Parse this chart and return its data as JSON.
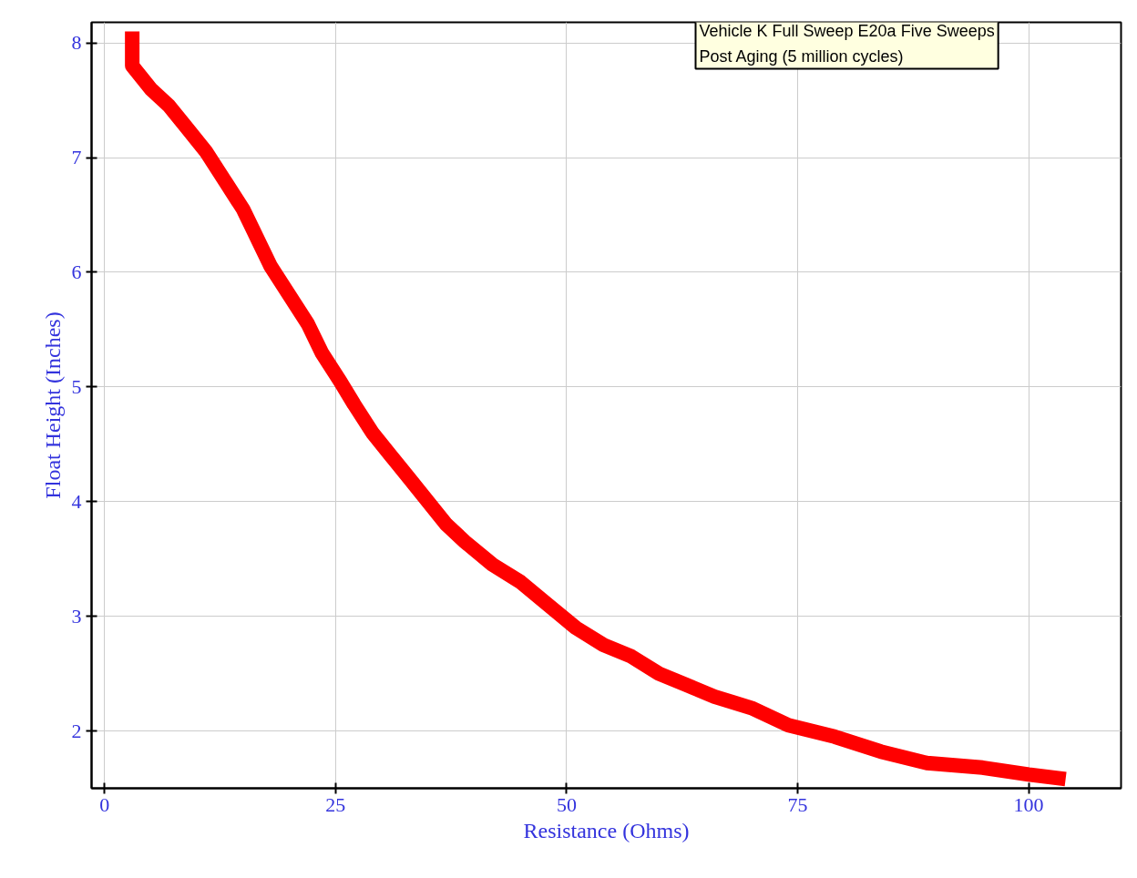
{
  "chart_data": {
    "type": "line",
    "xlabel": "Resistance (Ohms)",
    "ylabel": "Float Height (Inches)",
    "annotations": [
      "Vehicle K Full Sweep E20a Five Sweeps",
      "Post Aging (5 million cycles)"
    ],
    "xlim": [
      -1.4,
      110
    ],
    "ylim": [
      1.5,
      8.18
    ],
    "xticks": [
      0,
      25,
      50,
      75,
      100
    ],
    "yticks": [
      2,
      3,
      4,
      5,
      6,
      7,
      8
    ],
    "grid": true,
    "line_style": "solid",
    "marker": "none",
    "series": [
      {
        "color": "#ff0000",
        "x": [
          3,
          3,
          5,
          7,
          9,
          11,
          13,
          15,
          16.5,
          18,
          20,
          22,
          23.5,
          25.5,
          27,
          29,
          31,
          33,
          35,
          37,
          39,
          42,
          45,
          48,
          51,
          54,
          57,
          60,
          63,
          66,
          70,
          74,
          79,
          84,
          89,
          95,
          100,
          104
        ],
        "values": [
          8.1,
          7.8,
          7.6,
          7.45,
          7.25,
          7.05,
          6.8,
          6.55,
          6.3,
          6.05,
          5.8,
          5.55,
          5.3,
          5.05,
          4.85,
          4.6,
          4.4,
          4.2,
          4.0,
          3.8,
          3.65,
          3.45,
          3.3,
          3.1,
          2.9,
          2.75,
          2.65,
          2.5,
          2.4,
          2.3,
          2.2,
          2.05,
          1.95,
          1.82,
          1.72,
          1.68,
          1.62,
          1.58
        ]
      }
    ]
  }
}
